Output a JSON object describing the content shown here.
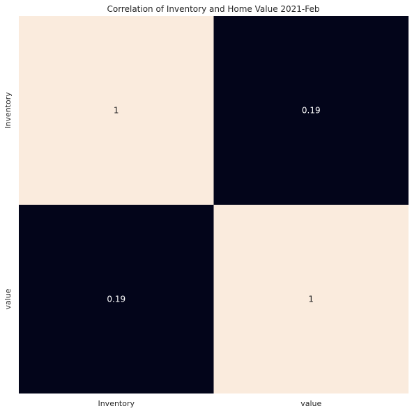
{
  "chart_data": {
    "type": "heatmap",
    "title": "Correlation of Inventory and Home Value 2021-Feb",
    "x_categories": [
      "Inventory",
      "value"
    ],
    "y_categories": [
      "Inventory",
      "value"
    ],
    "values": [
      [
        1,
        0.19
      ],
      [
        0.19,
        1
      ]
    ],
    "annotations": [
      [
        "1",
        "0.19"
      ],
      [
        "0.19",
        "1"
      ]
    ],
    "color_scale": {
      "min_value": 0.19,
      "max_value": 1,
      "min_color": "#03051a",
      "max_color": "#faebdd"
    },
    "annotation_colors": {
      "on_dark": "#ffffff",
      "on_light": "#262626"
    },
    "colorbar": false,
    "grid": false
  }
}
